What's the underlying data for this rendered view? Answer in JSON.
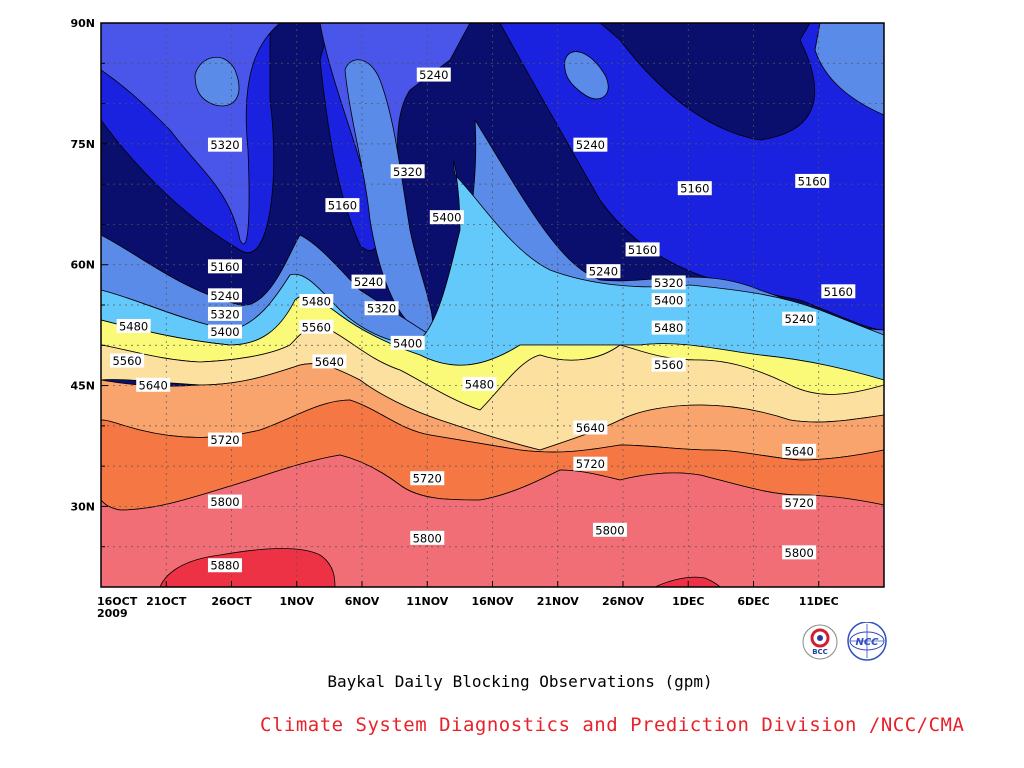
{
  "chart_data": {
    "type": "contour",
    "title": "Baykal Daily Blocking Observations (gpm)",
    "credit": "Climate System Diagnostics and Prediction Division /NCC/CMA",
    "logos": [
      "BCC",
      "NCC"
    ],
    "xlabel": "",
    "ylabel": "",
    "x_ticks": [
      "16OCT\n2009",
      "21OCT",
      "26OCT",
      "1NOV",
      "6NOV",
      "11NOV",
      "16NOV",
      "21NOV",
      "26NOV",
      "1DEC",
      "6DEC",
      "11DEC"
    ],
    "x_range_days": [
      0,
      60
    ],
    "y_ticks": [
      "30N",
      "45N",
      "60N",
      "75N",
      "90N"
    ],
    "y_values": [
      30,
      45,
      60,
      75,
      90
    ],
    "ylim": [
      20,
      90
    ],
    "grid": true,
    "contour_levels": [
      5160,
      5240,
      5320,
      5400,
      5480,
      5560,
      5640,
      5720,
      5800,
      5880
    ],
    "level_colors": [
      "#0a0f6e",
      "#1a22e0",
      "#4a55ea",
      "#5b8be8",
      "#63c8fa",
      "#fafa78",
      "#fbe0a0",
      "#f9a46c",
      "#f57844",
      "#f26e76",
      "#ee3246"
    ],
    "contour_labels": [
      {
        "text": "5320",
        "day": 9.5,
        "lat": 74.9
      },
      {
        "text": "5240",
        "day": 25.5,
        "lat": 83.6
      },
      {
        "text": "5320",
        "day": 23.5,
        "lat": 71.6
      },
      {
        "text": "5160",
        "day": 18.5,
        "lat": 67.4
      },
      {
        "text": "5400",
        "day": 26.5,
        "lat": 65.9
      },
      {
        "text": "5240",
        "day": 37.5,
        "lat": 74.9
      },
      {
        "text": "5160",
        "day": 45.5,
        "lat": 69.5
      },
      {
        "text": "5160",
        "day": 54.5,
        "lat": 70.4
      },
      {
        "text": "5160",
        "day": 9.5,
        "lat": 59.8
      },
      {
        "text": "5240",
        "day": 9.5,
        "lat": 56.2
      },
      {
        "text": "5320",
        "day": 9.5,
        "lat": 53.9
      },
      {
        "text": "5400",
        "day": 9.5,
        "lat": 51.7
      },
      {
        "text": "5480",
        "day": 16.5,
        "lat": 55.5
      },
      {
        "text": "5560",
        "day": 16.5,
        "lat": 52.3
      },
      {
        "text": "5640",
        "day": 17.5,
        "lat": 48.0
      },
      {
        "text": "5240",
        "day": 20.5,
        "lat": 57.9
      },
      {
        "text": "5320",
        "day": 21.5,
        "lat": 54.6
      },
      {
        "text": "5400",
        "day": 23.5,
        "lat": 50.3
      },
      {
        "text": "5480",
        "day": 2.5,
        "lat": 52.4
      },
      {
        "text": "5560",
        "day": 2.0,
        "lat": 48.1
      },
      {
        "text": "5640",
        "day": 4.0,
        "lat": 45.1
      },
      {
        "text": "5480",
        "day": 29.0,
        "lat": 45.2
      },
      {
        "text": "5160",
        "day": 41.5,
        "lat": 61.9
      },
      {
        "text": "5240",
        "day": 38.5,
        "lat": 59.2
      },
      {
        "text": "5320",
        "day": 43.5,
        "lat": 57.8
      },
      {
        "text": "5400",
        "day": 43.5,
        "lat": 55.6
      },
      {
        "text": "5480",
        "day": 43.5,
        "lat": 52.2
      },
      {
        "text": "5560",
        "day": 43.5,
        "lat": 47.6
      },
      {
        "text": "5160",
        "day": 56.5,
        "lat": 56.7
      },
      {
        "text": "5240",
        "day": 53.5,
        "lat": 53.3
      },
      {
        "text": "5720",
        "day": 9.5,
        "lat": 38.3
      },
      {
        "text": "5640",
        "day": 37.5,
        "lat": 39.8
      },
      {
        "text": "5720",
        "day": 25.0,
        "lat": 33.5
      },
      {
        "text": "5720",
        "day": 37.5,
        "lat": 35.3
      },
      {
        "text": "5640",
        "day": 53.5,
        "lat": 36.9
      },
      {
        "text": "5720",
        "day": 53.5,
        "lat": 30.5
      },
      {
        "text": "5800",
        "day": 9.5,
        "lat": 30.6
      },
      {
        "text": "5800",
        "day": 25.0,
        "lat": 26.1
      },
      {
        "text": "5800",
        "day": 39.0,
        "lat": 27.1
      },
      {
        "text": "5800",
        "day": 53.5,
        "lat": 24.3
      },
      {
        "text": "5880",
        "day": 9.5,
        "lat": 22.7
      }
    ]
  }
}
